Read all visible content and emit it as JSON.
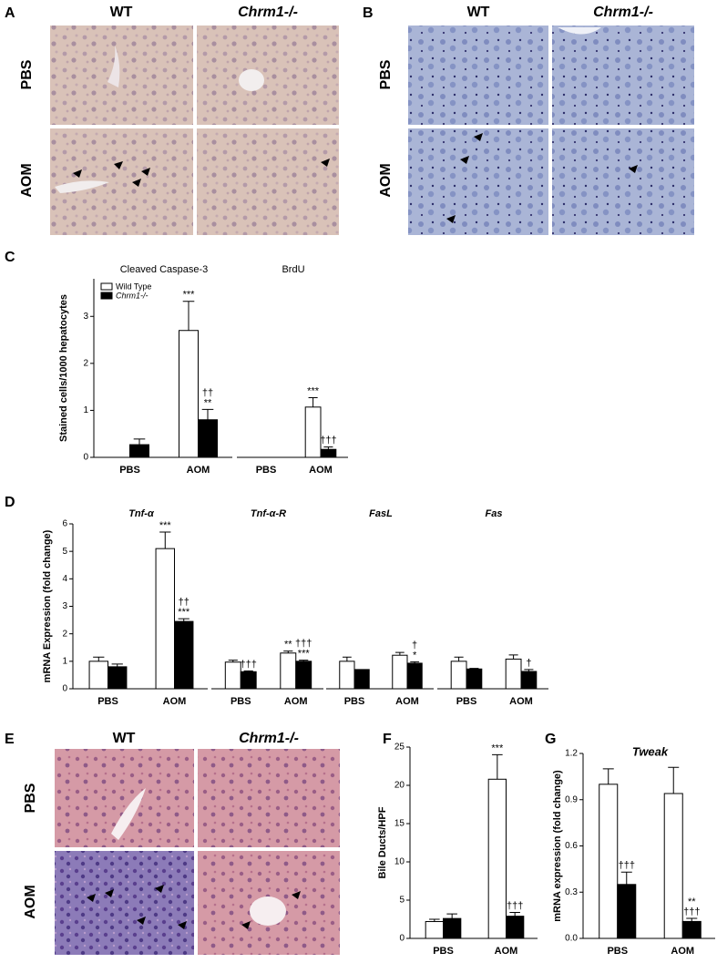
{
  "panel_labels": [
    "A",
    "B",
    "C",
    "D",
    "E",
    "F",
    "G"
  ],
  "micrographs": [
    {
      "columns": [
        "WT",
        "Chrm1-/-"
      ],
      "rows": [
        "PBS",
        "AOM"
      ]
    },
    {
      "columns": [
        "WT",
        "Chrm1-/-"
      ],
      "rows": [
        "PBS",
        "AOM"
      ]
    },
    {
      "columns": [
        "WT",
        "Chrm1-/-"
      ],
      "rows": [
        "PBS",
        "AOM"
      ]
    }
  ],
  "chart_data": [
    {
      "type": "bar",
      "y_label": "Stained cells/1000 hepatocytes",
      "ylim": [
        0,
        3.8
      ],
      "yticks": [
        0,
        1,
        2,
        3
      ],
      "series": [
        {
          "name": "Wild Type",
          "color": "#ffffff"
        },
        {
          "name": "Chrm1-/-",
          "color": "#000000"
        }
      ],
      "legend": "upper left",
      "groups": [
        {
          "title": "Cleaved Caspase-3",
          "categories": [
            "PBS",
            "AOM"
          ],
          "values": [
            [
              0,
              2.7
            ],
            [
              0.27,
              0.8
            ]
          ],
          "errors": [
            [
              null,
              0.62
            ],
            [
              0.12,
              0.22
            ]
          ],
          "annotations": [
            [
              null,
              [
                "***"
              ]
            ],
            [
              null,
              [
                "††",
                "**"
              ]
            ]
          ]
        },
        {
          "title": "BrdU",
          "categories": [
            "PBS",
            "AOM"
          ],
          "values": [
            [
              0,
              1.07
            ],
            [
              0,
              0.17
            ]
          ],
          "errors": [
            [
              null,
              0.2
            ],
            [
              null,
              0.05
            ]
          ],
          "annotations": [
            [
              null,
              [
                "***"
              ]
            ],
            [
              null,
              [
                "†††"
              ]
            ]
          ]
        }
      ]
    },
    {
      "type": "bar",
      "y_label": "mRNA Expression (fold change)",
      "ylim": [
        0,
        6
      ],
      "yticks": [
        0,
        1,
        2,
        3,
        4,
        5,
        6
      ],
      "colors": [
        "#ffffff",
        "#000000"
      ],
      "groups": [
        {
          "title": "Tnf-α",
          "categories": [
            "PBS",
            "AOM"
          ],
          "values": [
            [
              1.0,
              5.1
            ],
            [
              0.8,
              2.45
            ]
          ],
          "errors": [
            [
              0.15,
              0.6
            ],
            [
              0.1,
              0.1
            ]
          ],
          "annotations": [
            [
              null,
              [
                "***"
              ]
            ],
            [
              null,
              [
                "††",
                "***"
              ]
            ]
          ]
        },
        {
          "title": "Tnf-α-R",
          "categories": [
            "PBS",
            "AOM"
          ],
          "values": [
            [
              0.97,
              1.3
            ],
            [
              0.62,
              1.0
            ]
          ],
          "errors": [
            [
              0.07,
              0.07
            ],
            [
              0.03,
              0.04
            ]
          ],
          "annotations": [
            [
              null,
              [
                "**"
              ]
            ],
            [
              [
                "†††"
              ],
              [
                "†††",
                "***"
              ]
            ]
          ]
        },
        {
          "title": "FasL",
          "categories": [
            "PBS",
            "AOM"
          ],
          "values": [
            [
              1.0,
              1.22
            ],
            [
              0.7,
              0.93
            ]
          ],
          "errors": [
            [
              0.15,
              0.1
            ],
            [
              null,
              0.05
            ]
          ],
          "annotations": [
            [
              null,
              null
            ],
            [
              null,
              [
                "†",
                "*"
              ]
            ]
          ]
        },
        {
          "title": "Fas",
          "categories": [
            "PBS",
            "AOM"
          ],
          "values": [
            [
              1.0,
              1.08
            ],
            [
              0.72,
              0.63
            ]
          ],
          "errors": [
            [
              0.15,
              0.15
            ],
            [
              0.02,
              0.07
            ]
          ],
          "annotations": [
            [
              null,
              null
            ],
            [
              null,
              [
                "†"
              ]
            ]
          ]
        }
      ]
    },
    {
      "type": "bar",
      "y_label": "Bile Ducts/HPF",
      "ylim": [
        0,
        25
      ],
      "yticks": [
        0,
        5,
        10,
        15,
        20,
        25
      ],
      "colors": [
        "#ffffff",
        "#000000"
      ],
      "groups": [
        {
          "categories": [
            "PBS",
            "AOM"
          ],
          "values": [
            [
              2.2,
              20.8
            ],
            [
              2.6,
              2.9
            ]
          ],
          "errors": [
            [
              0.3,
              3.2
            ],
            [
              0.6,
              0.5
            ]
          ],
          "annotations": [
            [
              null,
              [
                "***"
              ]
            ],
            [
              null,
              [
                "†††"
              ]
            ]
          ]
        }
      ]
    },
    {
      "type": "bar",
      "title": "Tweak",
      "y_label": "mRNA expression (fold change)",
      "ylim": [
        0,
        1.2
      ],
      "yticks": [
        {
          "value": 0,
          "label": "0.0"
        },
        0.3,
        0.6,
        0.9,
        1.2
      ],
      "colors": [
        "#ffffff",
        "#000000"
      ],
      "groups": [
        {
          "categories": [
            "PBS",
            "AOM"
          ],
          "values": [
            [
              1.0,
              0.94
            ],
            [
              0.35,
              0.11
            ]
          ],
          "errors": [
            [
              0.1,
              0.17
            ],
            [
              0.08,
              0.02
            ]
          ],
          "annotations": [
            [
              null,
              null
            ],
            [
              [
                "†††"
              ],
              [
                "**",
                "†††"
              ]
            ]
          ]
        }
      ]
    }
  ]
}
